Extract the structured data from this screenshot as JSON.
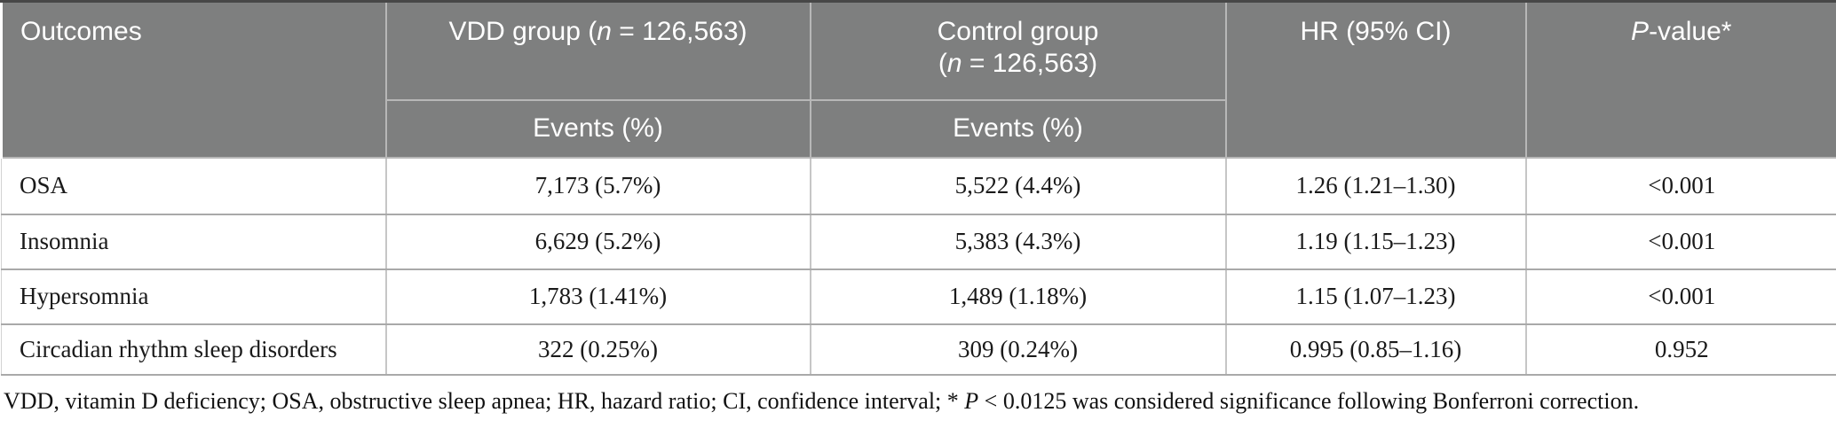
{
  "table": {
    "header": {
      "outcomes": "Outcomes",
      "vdd_group": {
        "pre": "VDD group (",
        "it": "n",
        "post": " = 126,563)"
      },
      "control_group": {
        "line1": "Control group",
        "pre": "(",
        "it": "n",
        "post": " = 126,563)"
      },
      "events_label": "Events (%)",
      "hr": "HR (95% CI)",
      "pvalue": {
        "it": "P",
        "post": "-value*"
      }
    },
    "rows": [
      {
        "outcome": "OSA",
        "vdd_events": "7,173 (5.7%)",
        "control_events": "5,522 (4.4%)",
        "hr": "1.26 (1.21–1.30)",
        "p": "<0.001"
      },
      {
        "outcome": "Insomnia",
        "vdd_events": "6,629 (5.2%)",
        "control_events": "5,383 (4.3%)",
        "hr": "1.19 (1.15–1.23)",
        "p": "<0.001"
      },
      {
        "outcome": "Hypersomnia",
        "vdd_events": "1,783 (1.41%)",
        "control_events": "1,489 (1.18%)",
        "hr": "1.15 (1.07–1.23)",
        "p": "<0.001"
      },
      {
        "outcome": "Circadian rhythm sleep disorders",
        "vdd_events": "322 (0.25%)",
        "control_events": "309 (0.24%)",
        "hr": "0.995 (0.85–1.16)",
        "p": "0.952"
      }
    ],
    "footnote": {
      "pre": "VDD, vitamin D deficiency; OSA, obstructive sleep apnea; HR, hazard ratio; CI, confidence interval; * ",
      "it": "P",
      "post": " < 0.0125 was considered significance following Bonferroni correction."
    }
  },
  "colors": {
    "header_bg": "#7e7f7f",
    "header_text": "#ffffff",
    "header_divider": "#b7b7b7",
    "top_border": "#474747",
    "row_line": "#a9a9a9",
    "column_line": "#c6c6c6",
    "body_text": "#1a1a1a",
    "background": "#ffffff"
  }
}
